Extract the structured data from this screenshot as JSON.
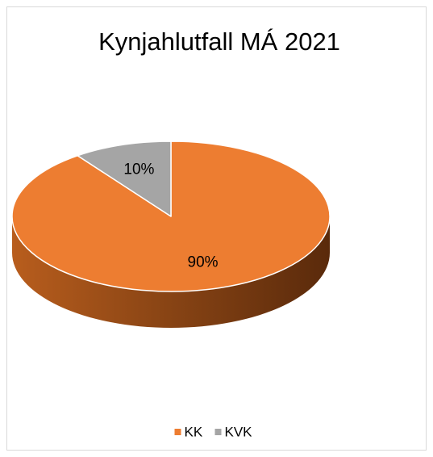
{
  "chart_data": {
    "type": "pie",
    "title": "Kynjahlutfall MÁ 2021",
    "categories": [
      "KK",
      "KVK"
    ],
    "values": [
      90,
      10
    ],
    "value_labels": [
      "90%",
      "10%"
    ],
    "colors": [
      "#ED7D31",
      "#A5A5A5"
    ],
    "legend": "bottom"
  }
}
